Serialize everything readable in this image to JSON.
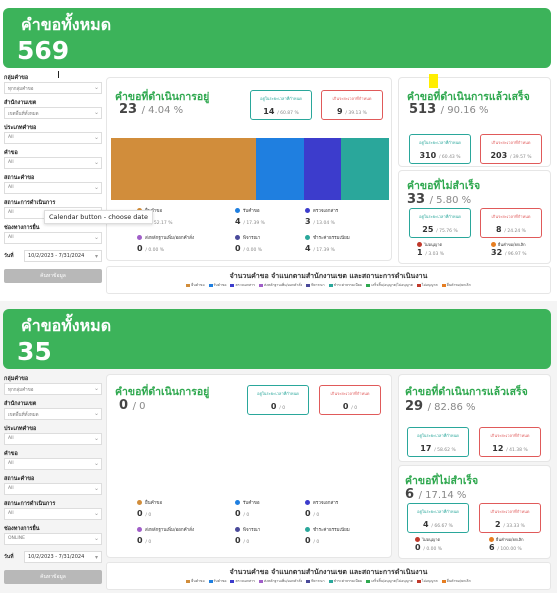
{
  "labels": {
    "total": "คำขอทั้งหมด",
    "in_progress": "คำขอที่ดำเนินการอยู่",
    "completed": "คำขอที่ดำเนินการแล้วเสร็จ",
    "failed": "คำขอที่ไม่สำเร็จ",
    "within_time": "อยู่ในระยะเวลาที่กำหนด",
    "over_time": "เกินระยะเวลาที่กำหนด",
    "search_button": "ค้นหาข้อมูล",
    "date_label": "วันที่",
    "date_sep": "-",
    "bottom_title": "จำนวนคำขอ จำแนกตามสำนักงานเขต และสถานะการดำเนินงาน"
  },
  "filters": [
    {
      "label": "กลุ่มคำขอ",
      "value": "ทุกกลุ่มคำขอ"
    },
    {
      "label": "สำนักงานเขต",
      "value": "เขตพื้นที่ทั้งหมด"
    },
    {
      "label": "ประเภทคำขอ",
      "value": "All"
    },
    {
      "label": "คำขอ",
      "value": "All"
    },
    {
      "label": "สถานะคำขอ",
      "value": "All"
    },
    {
      "label": "สถานะการดำเนินการ",
      "value": "All"
    },
    {
      "label": "ช่องทางการยื่น",
      "value": "All"
    }
  ],
  "status_legend": [
    {
      "name": "ยื่นคำขอ",
      "color": "#d18d3b"
    },
    {
      "name": "รับคำขอ",
      "color": "#1f7fe0"
    },
    {
      "name": "ตรวจเอกสาร",
      "color": "#3c3ccc"
    },
    {
      "name": "ส่งหลักฐานเพิ่ม/ออกคำสั่ง",
      "color": "#a05ec8"
    },
    {
      "name": "พิจารณา",
      "color": "#4a4a9a"
    },
    {
      "name": "ชำระค่าธรรมเนียม",
      "color": "#2aa79b"
    }
  ],
  "fail_legend": [
    {
      "name": "ไม่อนุญาต",
      "color": "#c0392b"
    },
    {
      "name": "ยื่นคำขอ/ยกเลิก",
      "color": "#e67e22"
    }
  ],
  "bottom_legend": [
    {
      "name": "ยื่นคำขอ",
      "color": "#d18d3b"
    },
    {
      "name": "รับคำขอ",
      "color": "#1f7fe0"
    },
    {
      "name": "ตรวจเอกสาร",
      "color": "#3c3ccc"
    },
    {
      "name": "ส่งหลักฐานเพิ่ม/ออกคำสั่ง",
      "color": "#a05ec8"
    },
    {
      "name": "พิจารณา",
      "color": "#4a4a9a"
    },
    {
      "name": "ชำระค่าธรรมเนียม",
      "color": "#2aa79b"
    },
    {
      "name": "เสร็จสิ้น/อนุญาต/ไม่อนุญาต",
      "color": "#2fa84f"
    },
    {
      "name": "ไม่อนุญาต",
      "color": "#c0392b"
    },
    {
      "name": "ยื่นคำขอ/ยกเลิก",
      "color": "#e67e22"
    }
  ],
  "panels": [
    {
      "total": "569",
      "channel": "All",
      "date_from": "10/2/2023",
      "date_to": "7/31/2024",
      "tooltip": "Calendar button - choose date",
      "in_progress": {
        "count": "23",
        "pct": "/ 4.04 %",
        "within": "14",
        "within_pct": "/ 60.87 %",
        "over": "9",
        "over_pct": "/ 39.13 %"
      },
      "status_values": [
        {
          "v": "12",
          "p": "/ 52.17 %"
        },
        {
          "v": "4",
          "p": "/ 17.39 %"
        },
        {
          "v": "3",
          "p": "/ 13.04 %"
        },
        {
          "v": "0",
          "p": "/ 0.00 %"
        },
        {
          "v": "0",
          "p": "/ 0.00 %"
        },
        {
          "v": "4",
          "p": "/ 17.39 %"
        }
      ],
      "bar_values": [
        12,
        4,
        3,
        0,
        0,
        4
      ],
      "completed": {
        "count": "513",
        "pct": "/ 90.16 %",
        "within": "310",
        "within_pct": "/ 60.43 %",
        "over": "203",
        "over_pct": "/ 39.57 %"
      },
      "failed": {
        "count": "33",
        "pct": "/ 5.80 %",
        "within": "25",
        "within_pct": "/ 75.76 %",
        "over": "8",
        "over_pct": "/ 24.24 %"
      },
      "fail_values": [
        {
          "v": "1",
          "p": "/ 3.03 %"
        },
        {
          "v": "32",
          "p": "/ 96.97 %"
        }
      ]
    },
    {
      "total": "35",
      "channel": "ONLINE",
      "date_from": "10/2/2023",
      "date_to": "7/31/2024",
      "in_progress": {
        "count": "0",
        "pct": "/ 0",
        "within": "0",
        "within_pct": "/ 0",
        "over": "0",
        "over_pct": "/ 0"
      },
      "status_values": [
        {
          "v": "0",
          "p": "/ 0"
        },
        {
          "v": "0",
          "p": "/ 0"
        },
        {
          "v": "0",
          "p": "/ 0"
        },
        {
          "v": "0",
          "p": "/ 0"
        },
        {
          "v": "0",
          "p": "/ 0"
        },
        {
          "v": "0",
          "p": "/ 0"
        }
      ],
      "bar_values": [
        0,
        0,
        0,
        0,
        0,
        0
      ],
      "completed": {
        "count": "29",
        "pct": "/ 82.86 %",
        "within": "17",
        "within_pct": "/ 58.62 %",
        "over": "12",
        "over_pct": "/ 41.38 %"
      },
      "failed": {
        "count": "6",
        "pct": "/ 17.14 %",
        "within": "4",
        "within_pct": "/ 66.67 %",
        "over": "2",
        "over_pct": "/ 33.33 %"
      },
      "fail_values": [
        {
          "v": "0",
          "p": "/ 0.00 %"
        },
        {
          "v": "6",
          "p": "/ 100.00 %"
        }
      ]
    }
  ]
}
